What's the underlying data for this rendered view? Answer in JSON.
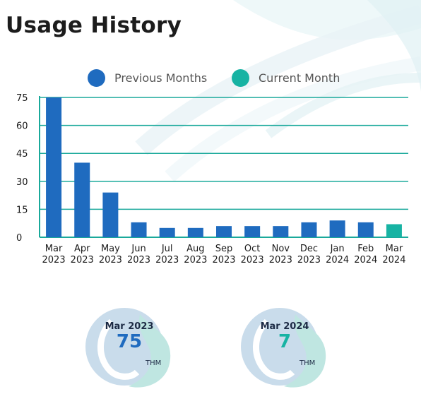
{
  "page": {
    "title": "Usage History"
  },
  "legend": [
    {
      "label": "Previous Months",
      "color": "#1f6bbf"
    },
    {
      "label": "Current Month",
      "color": "#17b3a3"
    }
  ],
  "colors": {
    "previous": "#1f6bbf",
    "current": "#17b3a3",
    "gridline": "#1aa99b",
    "axis": "#1aa99b"
  },
  "chart_data": {
    "type": "bar",
    "categories": [
      [
        "Mar",
        "2023"
      ],
      [
        "Apr",
        "2023"
      ],
      [
        "May",
        "2023"
      ],
      [
        "Jun",
        "2023"
      ],
      [
        "Jul",
        "2023"
      ],
      [
        "Aug",
        "2023"
      ],
      [
        "Sep",
        "2023"
      ],
      [
        "Oct",
        "2023"
      ],
      [
        "Nov",
        "2023"
      ],
      [
        "Dec",
        "2023"
      ],
      [
        "Jan",
        "2024"
      ],
      [
        "Feb",
        "2024"
      ],
      [
        "Mar",
        "2024"
      ]
    ],
    "series": [
      {
        "name": "Previous Months",
        "values": [
          75,
          40,
          24,
          8,
          5,
          5,
          6,
          6,
          6,
          8,
          9,
          8,
          null
        ]
      },
      {
        "name": "Current Month",
        "values": [
          null,
          null,
          null,
          null,
          null,
          null,
          null,
          null,
          null,
          null,
          null,
          null,
          7
        ]
      }
    ],
    "yticks": [
      0,
      15,
      30,
      45,
      60,
      75
    ],
    "ylim": [
      0,
      75
    ],
    "grid": true,
    "legend_position": "top"
  },
  "summaries": [
    {
      "date": "Mar 2023",
      "value": "75",
      "unit": "THM",
      "value_color": "#1f6bbf"
    },
    {
      "date": "Mar 2024",
      "value": "7",
      "unit": "THM",
      "value_color": "#17b3a3"
    }
  ]
}
